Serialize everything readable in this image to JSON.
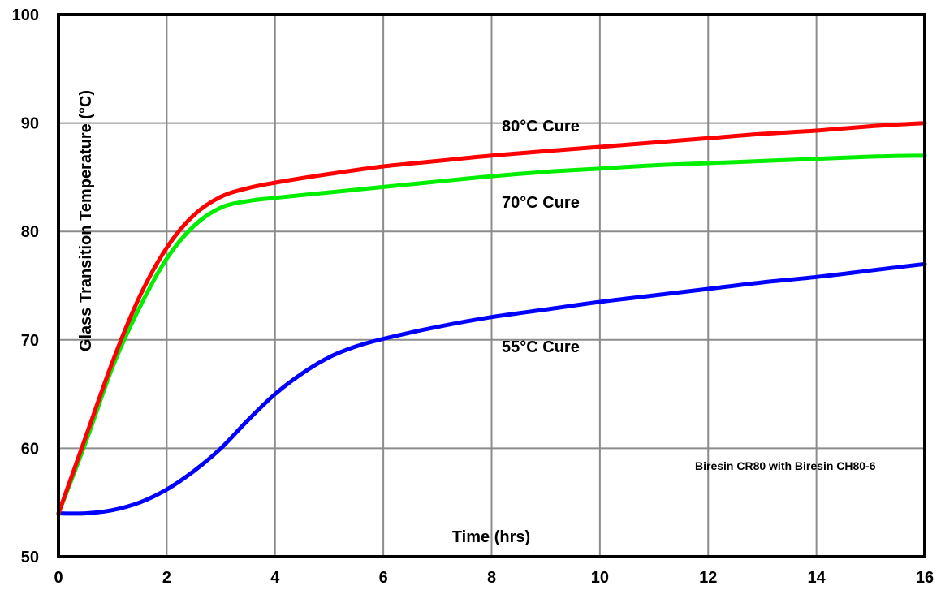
{
  "chart_data": {
    "type": "line",
    "title": "",
    "xlabel": "Time (hrs)",
    "ylabel": "Glass Transition Temperature (°C)",
    "xlim": [
      0,
      16
    ],
    "ylim": [
      50,
      100
    ],
    "xticks": [
      0,
      2,
      4,
      6,
      8,
      10,
      12,
      14,
      16
    ],
    "yticks": [
      50,
      60,
      70,
      80,
      90,
      100
    ],
    "grid": true,
    "annotation": "Biresin CR80 with Biresin CH80-6",
    "series": [
      {
        "name": "80°C Cure",
        "color": "#ff0000",
        "x": [
          0,
          0.5,
          1,
          1.5,
          2,
          2.5,
          3,
          3.5,
          4,
          5,
          6,
          7,
          8,
          9,
          10,
          11,
          12,
          13,
          14,
          15,
          16
        ],
        "y": [
          54,
          61,
          68,
          74,
          78.5,
          81.5,
          83.2,
          84,
          84.5,
          85.3,
          86,
          86.5,
          87,
          87.4,
          87.8,
          88.2,
          88.6,
          89,
          89.3,
          89.7,
          90
        ]
      },
      {
        "name": "70°C Cure",
        "color": "#00ee00",
        "x": [
          0,
          0.5,
          1,
          1.5,
          2,
          2.5,
          3,
          3.5,
          4,
          5,
          6,
          7,
          8,
          9,
          10,
          11,
          12,
          13,
          14,
          15,
          16
        ],
        "y": [
          54,
          60.5,
          67.5,
          73,
          77.5,
          80.5,
          82.2,
          82.8,
          83.1,
          83.6,
          84.1,
          84.6,
          85.1,
          85.5,
          85.8,
          86.1,
          86.3,
          86.5,
          86.7,
          86.9,
          87
        ]
      },
      {
        "name": "55°C Cure",
        "color": "#0000ff",
        "x": [
          0,
          0.5,
          1,
          1.5,
          2,
          2.5,
          3,
          3.5,
          4,
          4.5,
          5,
          5.5,
          6,
          7,
          8,
          9,
          10,
          11,
          12,
          13,
          14,
          15,
          16
        ],
        "y": [
          54,
          54,
          54.3,
          55,
          56.2,
          57.9,
          60,
          62.6,
          65,
          66.9,
          68.4,
          69.4,
          70.1,
          71.2,
          72.1,
          72.8,
          73.5,
          74.1,
          74.7,
          75.3,
          75.8,
          76.4,
          77
        ]
      }
    ]
  }
}
